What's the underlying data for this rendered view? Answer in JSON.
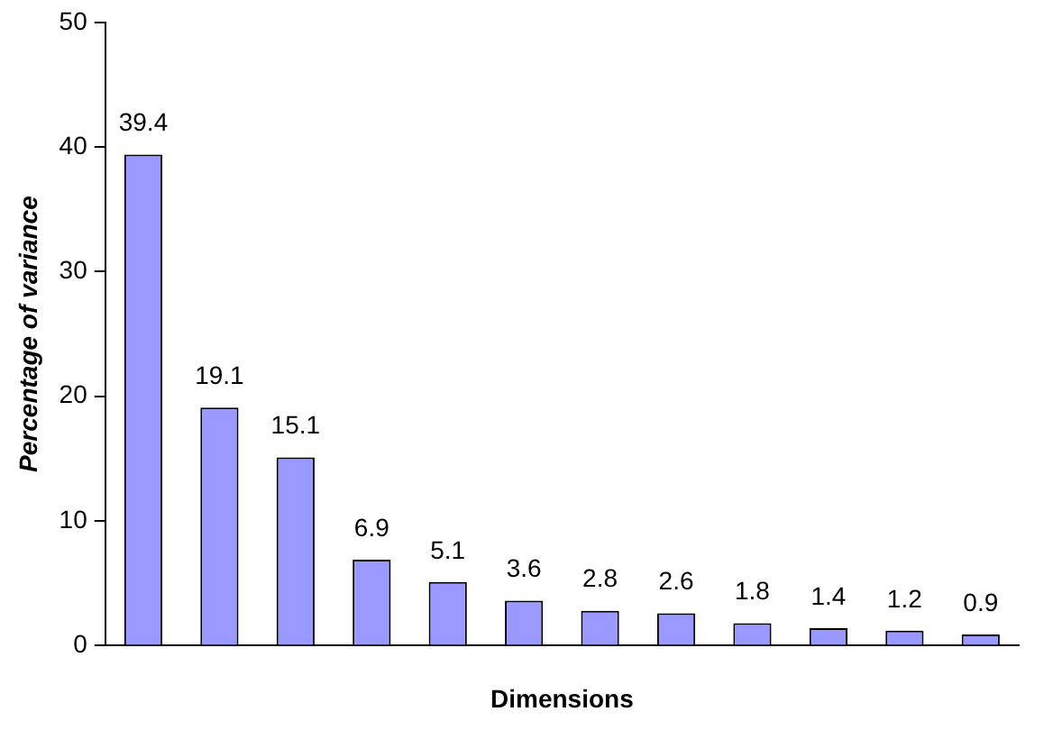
{
  "chart_data": {
    "type": "bar",
    "xlabel": "Dimensions",
    "ylabel": "Percentage of variance",
    "categories": [
      null,
      null,
      null,
      null,
      null,
      null,
      null,
      null,
      null,
      null,
      null,
      null
    ],
    "values": [
      39.4,
      19.1,
      15.1,
      6.9,
      5.1,
      3.6,
      2.8,
      2.6,
      1.8,
      1.4,
      1.2,
      0.9
    ],
    "color": "#9999ff",
    "ylim": [
      0,
      50
    ],
    "yticks": [
      0,
      10,
      20,
      30,
      40,
      50
    ],
    "grid": false,
    "legend": false,
    "data_labels": true
  }
}
